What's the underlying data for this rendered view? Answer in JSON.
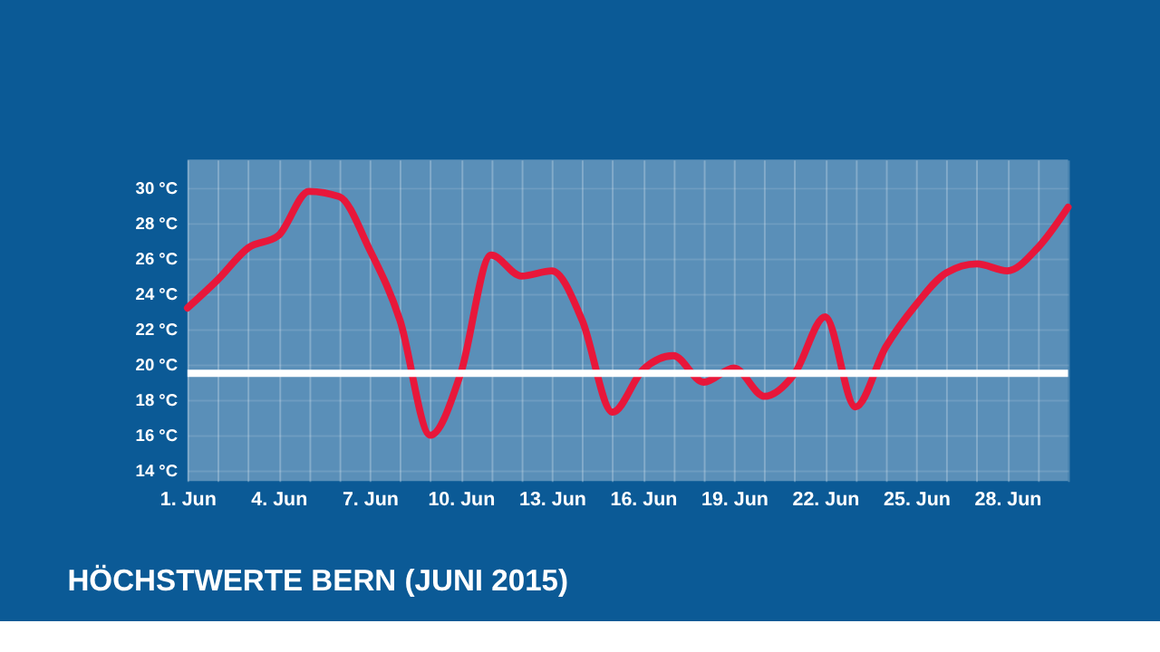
{
  "chart_data": {
    "type": "line",
    "title": "HÖCHSTWERTE BERN (JUNI 2015)",
    "x": [
      "2015-06-01",
      "2015-06-02",
      "2015-06-03",
      "2015-06-04",
      "2015-06-05",
      "2015-06-06",
      "2015-06-07",
      "2015-06-08",
      "2015-06-09",
      "2015-06-10",
      "2015-06-11",
      "2015-06-12",
      "2015-06-13",
      "2015-06-14",
      "2015-06-15",
      "2015-06-16",
      "2015-06-17",
      "2015-06-18",
      "2015-06-19",
      "2015-06-20",
      "2015-06-21",
      "2015-06-22",
      "2015-06-23",
      "2015-06-24",
      "2015-06-25",
      "2015-06-26",
      "2015-06-27",
      "2015-06-28",
      "2015-06-29",
      "2015-06-30"
    ],
    "series": [
      {
        "color": "#e8173a",
        "values": [
          23.2,
          24.8,
          26.6,
          27.3,
          29.8,
          29.5,
          26.5,
          22.5,
          16.0,
          19.5,
          26.2,
          25.0,
          25.3,
          22.5,
          17.3,
          19.7,
          20.5,
          19.0,
          19.8,
          18.2,
          19.5,
          22.7,
          17.6,
          21.0,
          23.4,
          25.2,
          25.7,
          25.3,
          26.6,
          28.9
        ]
      }
    ],
    "xlim": [
      "2015-06-01",
      "2015-06-30"
    ],
    "xticks": [
      {
        "value": "2015-06-01",
        "label": "1. Jun"
      },
      {
        "value": "2015-06-02",
        "label": null
      },
      {
        "value": "2015-06-03",
        "label": null
      },
      {
        "value": "2015-06-04",
        "label": "4. Jun"
      },
      {
        "value": "2015-06-05",
        "label": null
      },
      {
        "value": "2015-06-06",
        "label": null
      },
      {
        "value": "2015-06-07",
        "label": "7. Jun"
      },
      {
        "value": "2015-06-08",
        "label": null
      },
      {
        "value": "2015-06-09",
        "label": null
      },
      {
        "value": "2015-06-10",
        "label": "10. Jun"
      },
      {
        "value": "2015-06-11",
        "label": null
      },
      {
        "value": "2015-06-12",
        "label": null
      },
      {
        "value": "2015-06-13",
        "label": "13. Jun"
      },
      {
        "value": "2015-06-14",
        "label": null
      },
      {
        "value": "2015-06-15",
        "label": null
      },
      {
        "value": "2015-06-16",
        "label": "16. Jun"
      },
      {
        "value": "2015-06-17",
        "label": null
      },
      {
        "value": "2015-06-18",
        "label": null
      },
      {
        "value": "2015-06-19",
        "label": "19. Jun"
      },
      {
        "value": "2015-06-20",
        "label": null
      },
      {
        "value": "2015-06-21",
        "label": null
      },
      {
        "value": "2015-06-22",
        "label": "22. Jun"
      },
      {
        "value": "2015-06-23",
        "label": null
      },
      {
        "value": "2015-06-24",
        "label": null
      },
      {
        "value": "2015-06-25",
        "label": "25. Jun"
      },
      {
        "value": "2015-06-26",
        "label": null
      },
      {
        "value": "2015-06-27",
        "label": null
      },
      {
        "value": "2015-06-28",
        "label": "28. Jun"
      },
      {
        "value": "2015-06-29",
        "label": null
      },
      {
        "value": "2015-06-30",
        "label": null
      }
    ],
    "ylim": [
      13.4,
      31.6
    ],
    "yticks": [
      {
        "value": 14,
        "label": "14 °C"
      },
      {
        "value": 16,
        "label": "16 °C"
      },
      {
        "value": 18,
        "label": "18 °C"
      },
      {
        "value": 20,
        "label": "20 °C"
      },
      {
        "value": 22,
        "label": "22 °C"
      },
      {
        "value": 24,
        "label": "24 °C"
      },
      {
        "value": 26,
        "label": "26 °C"
      },
      {
        "value": 28,
        "label": "28 °C"
      },
      {
        "value": 30,
        "label": "30 °C"
      }
    ],
    "ref_lines": [
      {
        "axis": "y",
        "value": 19.5,
        "color": "#ffffff"
      }
    ],
    "grid": true,
    "line_style": "solid"
  }
}
